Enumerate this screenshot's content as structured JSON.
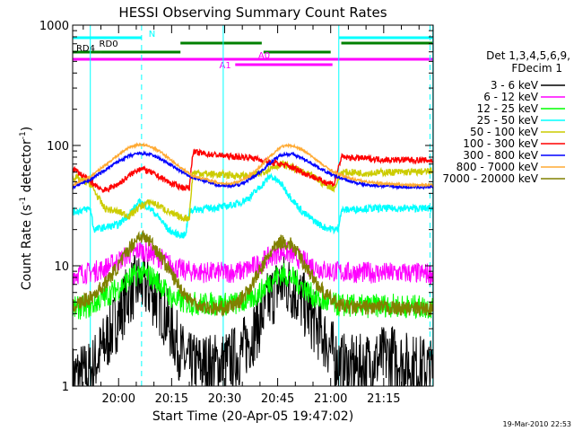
{
  "chart_data": {
    "type": "line",
    "title": "HESSI Observing Summary Count Rates",
    "xlabel": "Start Time (20-Apr-05 19:47:02)",
    "ylabel_main": "Count Rate (s",
    "ylabel_sup1": "-1",
    "ylabel_mid": " detector",
    "ylabel_sup2": "-1",
    "ylabel_end": ")",
    "yscale": "log",
    "ylim": [
      1,
      1000
    ],
    "xlim_minutes": [
      -13.0,
      89.0
    ],
    "x_tick_labels": [
      "20:00",
      "20:15",
      "20:30",
      "20:45",
      "21:00",
      "21:15"
    ],
    "x_tick_minutes": [
      0,
      15,
      30,
      45,
      60,
      75
    ],
    "y_tick_labels": [
      "1",
      "10",
      "100",
      "1000"
    ],
    "y_tick_values": [
      1,
      10,
      100,
      1000
    ],
    "legend_header": [
      "Det 1,3,4,5,6,9,",
      "FDecim 1"
    ],
    "legend_position": "right",
    "timestamp": "19-Mar-2010 22:53",
    "series": [
      {
        "name": "3 - 6 keV",
        "color": "#000000",
        "x": [
          -13,
          -8,
          -4,
          0,
          3,
          6,
          9,
          12,
          14,
          16,
          18,
          19,
          20,
          25,
          28,
          31,
          34,
          37,
          40,
          43,
          46,
          49,
          52,
          55,
          58,
          61,
          62,
          63,
          67,
          72,
          77,
          82,
          87,
          89
        ],
        "y": [
          1.2,
          1.3,
          2.2,
          3.8,
          6.0,
          7.2,
          6.2,
          4.6,
          3.4,
          2.5,
          1.8,
          1.6,
          1.5,
          1.5,
          1.5,
          1.6,
          1.8,
          2.4,
          3.5,
          5.5,
          7.2,
          6.5,
          5.0,
          3.5,
          2.6,
          1.8,
          1.6,
          1.5,
          1.4,
          1.6,
          1.8,
          1.5,
          1.4,
          1.3
        ]
      },
      {
        "name": "6 - 12 keV",
        "color": "#ff00ff",
        "x": [
          -13,
          -8,
          -4,
          0,
          3,
          6,
          9,
          12,
          15,
          18,
          20,
          25,
          30,
          34,
          37,
          40,
          43,
          46,
          49,
          52,
          55,
          58,
          61,
          64,
          70,
          76,
          82,
          89
        ],
        "y": [
          8.5,
          8.8,
          9.5,
          11,
          12.5,
          13.5,
          12.8,
          11.5,
          10,
          9.2,
          9.0,
          8.8,
          8.8,
          8.9,
          9.5,
          10.5,
          12.0,
          13.2,
          12.5,
          11.0,
          10.0,
          9.2,
          9.0,
          8.8,
          8.8,
          8.7,
          8.7,
          8.6
        ]
      },
      {
        "name": "12 - 25 keV",
        "color": "#00ff00",
        "x": [
          -13,
          -8,
          -4,
          0,
          3,
          6,
          9,
          12,
          14,
          16,
          18,
          20,
          25,
          30,
          34,
          37,
          40,
          43,
          46,
          49,
          52,
          55,
          58,
          61,
          62,
          63,
          70,
          76,
          82,
          89
        ],
        "y": [
          4.4,
          4.6,
          5.5,
          6.5,
          7.8,
          8.8,
          8.2,
          7.0,
          5.8,
          5.2,
          5.0,
          4.9,
          4.8,
          4.8,
          4.9,
          5.2,
          6.0,
          7.5,
          8.6,
          8.0,
          6.8,
          5.6,
          5.0,
          4.8,
          4.7,
          4.7,
          4.6,
          4.7,
          4.6,
          4.5
        ]
      },
      {
        "name": "25 - 50 keV",
        "color": "#00ffff",
        "x": [
          -13,
          -8,
          -7,
          0,
          3,
          6,
          9,
          12,
          14,
          16,
          18,
          19,
          20,
          25,
          30,
          34,
          37,
          40,
          43,
          46,
          49,
          52,
          55,
          58,
          61,
          62,
          63,
          70,
          76,
          82,
          89
        ],
        "y": [
          28,
          30,
          20,
          22,
          27,
          34,
          30,
          24,
          20,
          18.5,
          18,
          18,
          29,
          30,
          31,
          33,
          37,
          45,
          56,
          48,
          36,
          28,
          24,
          21,
          20,
          20,
          29,
          30,
          30,
          30,
          30
        ]
      },
      {
        "name": "50 - 100 keV",
        "color": "#cccc00",
        "x": [
          -13,
          -8,
          -4,
          0,
          3,
          6,
          9,
          12,
          15,
          18,
          20,
          21,
          25,
          30,
          34,
          37,
          40,
          43,
          46,
          49,
          52,
          55,
          58,
          61,
          63,
          70,
          76,
          82,
          89
        ],
        "y": [
          55,
          48,
          30,
          28,
          26,
          31,
          34,
          31,
          27,
          25,
          25,
          60,
          58,
          57,
          56,
          56,
          58,
          65,
          70,
          66,
          60,
          55,
          48,
          44,
          60,
          59,
          60,
          60,
          61
        ]
      },
      {
        "name": "100 - 300 keV",
        "color": "#ff0000",
        "x": [
          -13,
          -8,
          -4,
          0,
          3,
          6,
          9,
          12,
          15,
          18,
          20,
          21,
          25,
          30,
          34,
          37,
          40,
          43,
          46,
          49,
          52,
          55,
          58,
          61,
          63,
          70,
          76,
          82,
          89
        ],
        "y": [
          65,
          50,
          42,
          48,
          56,
          65,
          60,
          54,
          48,
          45,
          44,
          88,
          85,
          82,
          80,
          80,
          76,
          72,
          70,
          66,
          60,
          55,
          50,
          48,
          80,
          78,
          76,
          76,
          75
        ]
      },
      {
        "name": "300 - 800 keV",
        "color": "#0000ff",
        "x": [
          -13,
          -8,
          -4,
          0,
          3,
          6,
          9,
          12,
          15,
          18,
          21,
          25,
          28,
          31,
          34,
          37,
          40,
          43,
          46,
          49,
          52,
          55,
          58,
          61,
          64,
          67,
          70,
          76,
          82,
          89
        ],
        "y": [
          45,
          52,
          62,
          74,
          82,
          86,
          84,
          77,
          68,
          60,
          54,
          50,
          47,
          46,
          47,
          52,
          60,
          72,
          84,
          85,
          78,
          70,
          62,
          56,
          52,
          49,
          47,
          46,
          45,
          45
        ]
      },
      {
        "name": "800 - 7000 keV",
        "color": "#ffaa33",
        "x": [
          -13,
          -8,
          -4,
          0,
          3,
          6,
          9,
          12,
          15,
          18,
          21,
          25,
          28,
          31,
          34,
          37,
          40,
          43,
          46,
          49,
          52,
          55,
          58,
          61,
          64,
          67,
          70,
          76,
          82,
          89
        ],
        "y": [
          47,
          55,
          68,
          84,
          97,
          102,
          98,
          88,
          75,
          64,
          56,
          52,
          49,
          48,
          50,
          56,
          66,
          82,
          98,
          100,
          92,
          80,
          68,
          60,
          55,
          52,
          50,
          48,
          47,
          47
        ]
      },
      {
        "name": "7000 - 20000 keV",
        "color": "#808000",
        "x": [
          -13,
          -8,
          -4,
          0,
          3,
          6,
          9,
          12,
          15,
          18,
          21,
          25,
          28,
          31,
          34,
          37,
          40,
          43,
          46,
          49,
          52,
          55,
          58,
          61,
          64,
          67,
          70,
          76,
          82,
          89
        ],
        "y": [
          4.6,
          5.4,
          7.0,
          10,
          14,
          18,
          16,
          12,
          8.5,
          6.2,
          5.0,
          4.5,
          4.4,
          4.5,
          5.0,
          6.5,
          9.0,
          13,
          16,
          15,
          11,
          8.0,
          6.0,
          5.0,
          4.6,
          4.5,
          4.5,
          4.5,
          4.4,
          4.4
        ]
      }
    ],
    "vertical_markers": {
      "solid_minutes": [
        -13,
        -8,
        29.6,
        62.3,
        88.9
      ],
      "dashed_minutes": [
        6.5,
        88.1
      ],
      "color": "#00ffff"
    },
    "flag_bars": [
      {
        "label": "N",
        "color": "#00ffff",
        "segments": [
          [
            -13,
            6.5
          ],
          [
            62.3,
            89
          ]
        ],
        "level": 1,
        "label_minute": 8.5
      },
      {
        "label": "RD0",
        "color": "#008000",
        "segments": [
          [
            17.5,
            40.5
          ],
          [
            63.0,
            89
          ]
        ],
        "level": 2,
        "label_minute": -5.5
      },
      {
        "label": "RD4",
        "color": "#008000",
        "segments": [
          [
            -13,
            -5.0
          ],
          [
            -5.0,
            17.5
          ],
          [
            41.0,
            60.0
          ]
        ],
        "level": 3,
        "label_minute": -12.0
      },
      {
        "label": "A0",
        "color": "#ff00ff",
        "segments": [
          [
            -13,
            89
          ]
        ],
        "level": 4,
        "label_minute": 39.5
      },
      {
        "label": "A1",
        "color": "#ff00ff",
        "segments": [
          [
            33.0,
            60.5
          ]
        ],
        "level": 5,
        "label_minute": 28.5
      }
    ]
  }
}
